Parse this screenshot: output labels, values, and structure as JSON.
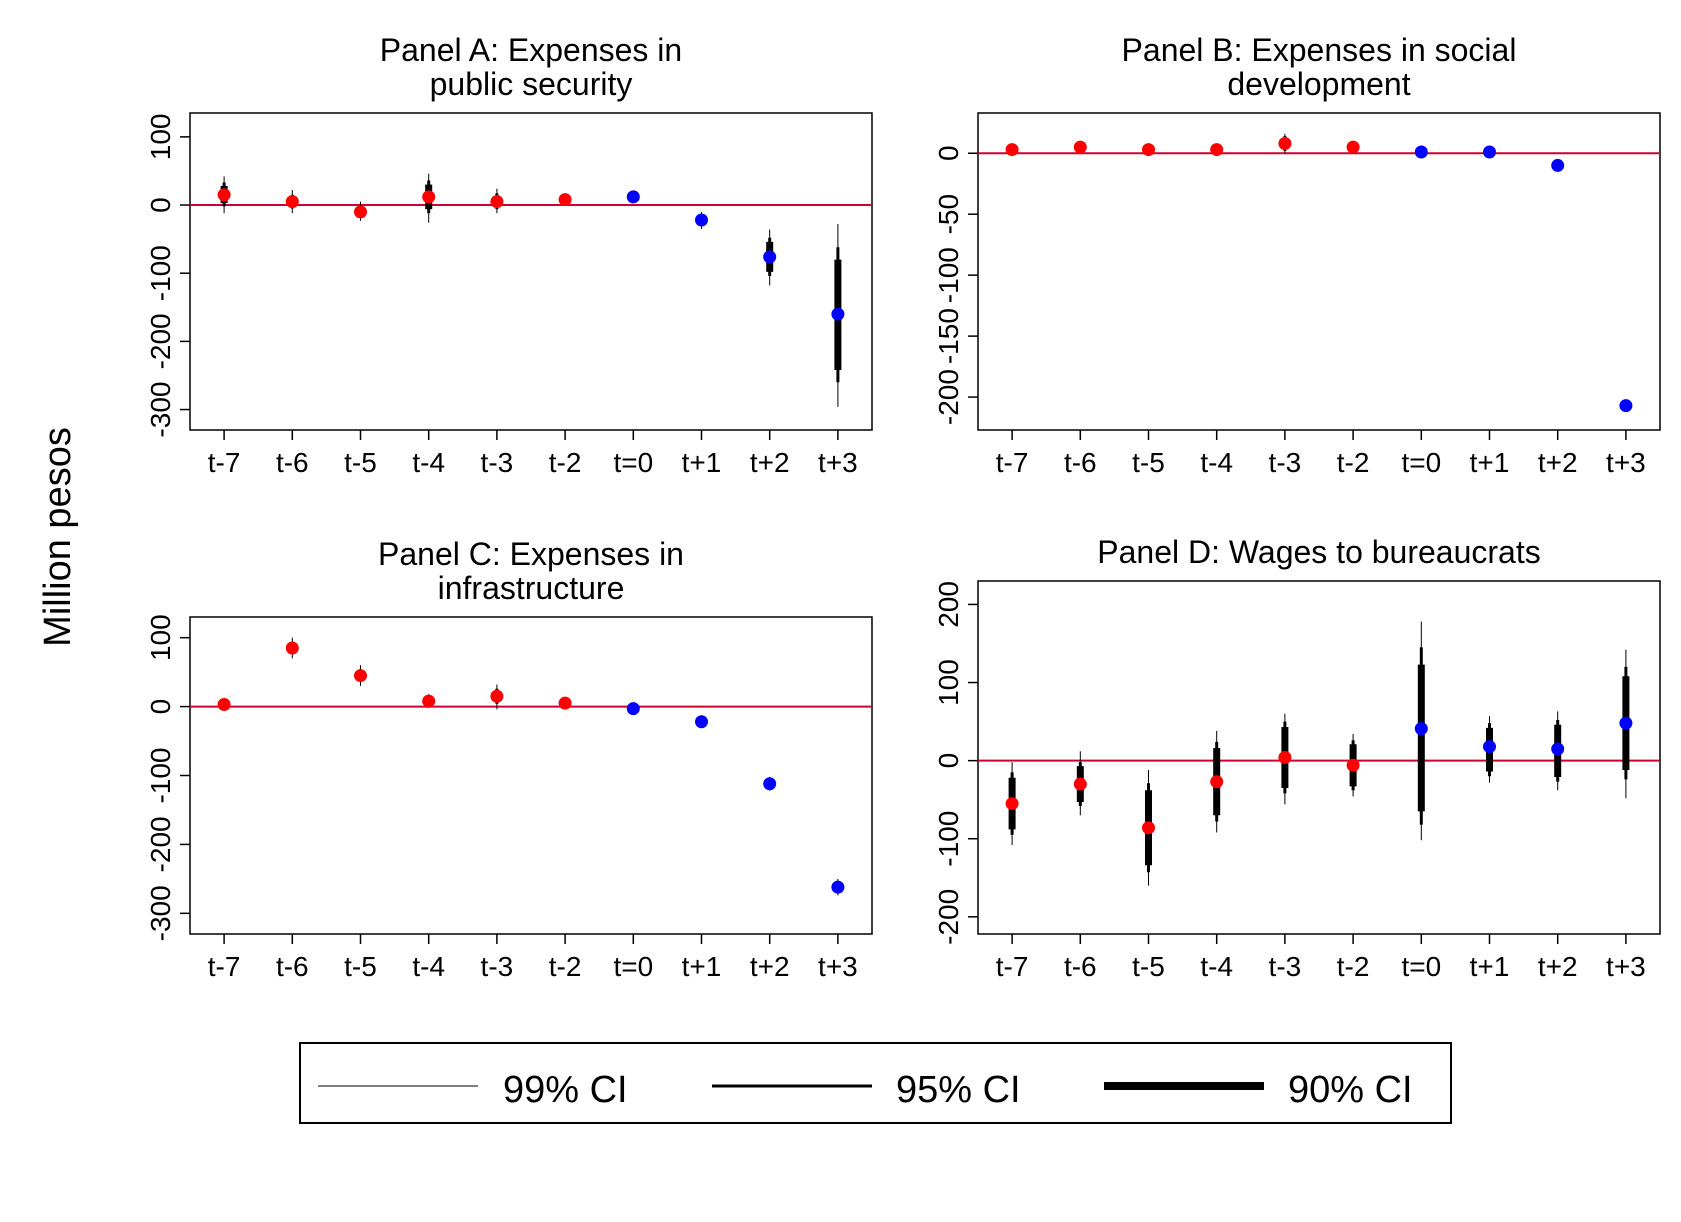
{
  "ylabel": "Million pesos",
  "colors": {
    "pre": "#ff0000",
    "post": "#0000ff",
    "zero_line": "#cc0033",
    "ci": "#000000"
  },
  "legend": {
    "ci99": "99% CI",
    "ci95": "95% CI",
    "ci90": "90% CI"
  },
  "chart_data": [
    {
      "type": "scatter",
      "title_lines": [
        "Panel A: Expenses in",
        "public security"
      ],
      "categories": [
        "t-7",
        "t-6",
        "t-5",
        "t-4",
        "t-3",
        "t-2",
        "t=0",
        "t+1",
        "t+2",
        "t+3"
      ],
      "ylim": [
        -330,
        135
      ],
      "yticks": [
        100,
        0,
        -100,
        -200,
        -300
      ],
      "ytick_labels": [
        "100",
        "0",
        "-100",
        "-200",
        "-300"
      ],
      "zero_line": 0,
      "points": [
        {
          "x": "t-7",
          "y": 15,
          "group": "pre",
          "ci90": [
            3,
            28
          ],
          "ci95": [
            -2,
            33
          ],
          "ci99": [
            -12,
            42
          ]
        },
        {
          "x": "t-6",
          "y": 5,
          "group": "pre",
          "ci90": [
            -2,
            12
          ],
          "ci95": [
            -5,
            15
          ],
          "ci99": [
            -12,
            22
          ]
        },
        {
          "x": "t-5",
          "y": -10,
          "group": "pre",
          "ci90": [
            -16,
            -4
          ],
          "ci95": [
            -18,
            -1
          ],
          "ci99": [
            -23,
            5
          ]
        },
        {
          "x": "t-4",
          "y": 12,
          "group": "pre",
          "ci90": [
            -6,
            30
          ],
          "ci95": [
            -12,
            36
          ],
          "ci99": [
            -26,
            46
          ]
        },
        {
          "x": "t-3",
          "y": 5,
          "group": "pre",
          "ci90": [
            -3,
            13
          ],
          "ci95": [
            -6,
            17
          ],
          "ci99": [
            -12,
            24
          ]
        },
        {
          "x": "t-2",
          "y": 8,
          "group": "pre",
          "ci90": [
            5,
            12
          ],
          "ci95": [
            4,
            13
          ],
          "ci99": [
            2,
            15
          ]
        },
        {
          "x": "t=0",
          "y": 12,
          "group": "post",
          "ci90": [
            10,
            14
          ],
          "ci95": [
            9,
            15
          ],
          "ci99": [
            8,
            16
          ]
        },
        {
          "x": "t+1",
          "y": -22,
          "group": "post",
          "ci90": [
            -28,
            -16
          ],
          "ci95": [
            -30,
            -14
          ],
          "ci99": [
            -35,
            -10
          ]
        },
        {
          "x": "t+2",
          "y": -76,
          "group": "post",
          "ci90": [
            -98,
            -54
          ],
          "ci95": [
            -104,
            -48
          ],
          "ci99": [
            -118,
            -36
          ]
        },
        {
          "x": "t+3",
          "y": -160,
          "group": "post",
          "ci90": [
            -242,
            -80
          ],
          "ci95": [
            -260,
            -62
          ],
          "ci99": [
            -296,
            -28
          ]
        }
      ]
    },
    {
      "type": "scatter",
      "title_lines": [
        "Panel B: Expenses in social",
        "development"
      ],
      "categories": [
        "t-7",
        "t-6",
        "t-5",
        "t-4",
        "t-3",
        "t-2",
        "t=0",
        "t+1",
        "t+2",
        "t+3"
      ],
      "ylim": [
        -227,
        33
      ],
      "yticks": [
        0,
        -50,
        -100,
        -150,
        -200
      ],
      "ytick_labels": [
        "0",
        "-50",
        "-100",
        "-150",
        "-200"
      ],
      "zero_line": 0,
      "points": [
        {
          "x": "t-7",
          "y": 3,
          "group": "pre",
          "ci90": [
            1,
            5
          ],
          "ci95": [
            0,
            6
          ],
          "ci99": [
            -1,
            7
          ]
        },
        {
          "x": "t-6",
          "y": 5,
          "group": "pre",
          "ci90": [
            3,
            7
          ],
          "ci95": [
            2,
            8
          ],
          "ci99": [
            1,
            9
          ]
        },
        {
          "x": "t-5",
          "y": 3,
          "group": "pre",
          "ci90": [
            1,
            5
          ],
          "ci95": [
            0,
            6
          ],
          "ci99": [
            -1,
            7
          ]
        },
        {
          "x": "t-4",
          "y": 3,
          "group": "pre",
          "ci90": [
            1,
            5
          ],
          "ci95": [
            0,
            6
          ],
          "ci99": [
            -1,
            7
          ]
        },
        {
          "x": "t-3",
          "y": 8,
          "group": "pre",
          "ci90": [
            4,
            12
          ],
          "ci95": [
            2,
            14
          ],
          "ci99": [
            0,
            16
          ]
        },
        {
          "x": "t-2",
          "y": 5,
          "group": "pre",
          "ci90": [
            3,
            7
          ],
          "ci95": [
            2,
            8
          ],
          "ci99": [
            1,
            9
          ]
        },
        {
          "x": "t=0",
          "y": 1,
          "group": "post",
          "ci90": [
            0,
            2
          ],
          "ci95": [
            -0.5,
            2.5
          ],
          "ci99": [
            -1,
            3
          ]
        },
        {
          "x": "t+1",
          "y": 1,
          "group": "post",
          "ci90": [
            0,
            2
          ],
          "ci95": [
            -0.5,
            2.5
          ],
          "ci99": [
            -1,
            3
          ]
        },
        {
          "x": "t+2",
          "y": -10,
          "group": "post",
          "ci90": [
            -12,
            -8
          ],
          "ci95": [
            -13,
            -7
          ],
          "ci99": [
            -14,
            -6
          ]
        },
        {
          "x": "t+3",
          "y": -207,
          "group": "post",
          "ci90": [
            -209,
            -205
          ],
          "ci95": [
            -210,
            -204
          ],
          "ci99": [
            -211,
            -203
          ]
        }
      ]
    },
    {
      "type": "scatter",
      "title_lines": [
        "Panel C: Expenses in",
        "infrastructure"
      ],
      "categories": [
        "t-7",
        "t-6",
        "t-5",
        "t-4",
        "t-3",
        "t-2",
        "t=0",
        "t+1",
        "t+2",
        "t+3"
      ],
      "ylim": [
        -330,
        130
      ],
      "yticks": [
        100,
        0,
        -100,
        -200,
        -300
      ],
      "ytick_labels": [
        "100",
        "0",
        "-100",
        "-200",
        "-300"
      ],
      "zero_line": 0,
      "points": [
        {
          "x": "t-7",
          "y": 3,
          "group": "pre",
          "ci90": [
            1,
            5
          ],
          "ci95": [
            0,
            6
          ],
          "ci99": [
            -1,
            7
          ]
        },
        {
          "x": "t-6",
          "y": 85,
          "group": "pre",
          "ci90": [
            79,
            91
          ],
          "ci95": [
            76,
            94
          ],
          "ci99": [
            70,
            100
          ]
        },
        {
          "x": "t-5",
          "y": 45,
          "group": "pre",
          "ci90": [
            39,
            51
          ],
          "ci95": [
            36,
            54
          ],
          "ci99": [
            30,
            60
          ]
        },
        {
          "x": "t-4",
          "y": 8,
          "group": "pre",
          "ci90": [
            4,
            12
          ],
          "ci95": [
            2,
            14
          ],
          "ci99": [
            -2,
            18
          ]
        },
        {
          "x": "t-3",
          "y": 15,
          "group": "pre",
          "ci90": [
            7,
            23
          ],
          "ci95": [
            4,
            26
          ],
          "ci99": [
            -4,
            32
          ]
        },
        {
          "x": "t-2",
          "y": 5,
          "group": "pre",
          "ci90": [
            3,
            7
          ],
          "ci95": [
            2,
            8
          ],
          "ci99": [
            1,
            9
          ]
        },
        {
          "x": "t=0",
          "y": -3,
          "group": "post",
          "ci90": [
            -4,
            -2
          ],
          "ci95": [
            -5,
            -1
          ],
          "ci99": [
            -6,
            0
          ]
        },
        {
          "x": "t+1",
          "y": -22,
          "group": "post",
          "ci90": [
            -24,
            -20
          ],
          "ci95": [
            -25,
            -19
          ],
          "ci99": [
            -27,
            -17
          ]
        },
        {
          "x": "t+2",
          "y": -112,
          "group": "post",
          "ci90": [
            -117,
            -107
          ],
          "ci95": [
            -119,
            -105
          ],
          "ci99": [
            -122,
            -102
          ]
        },
        {
          "x": "t+3",
          "y": -262,
          "group": "post",
          "ci90": [
            -267,
            -257
          ],
          "ci95": [
            -270,
            -254
          ],
          "ci99": [
            -274,
            -250
          ]
        }
      ]
    },
    {
      "type": "scatter",
      "title_lines": [
        "Panel D: Wages to bureaucrats"
      ],
      "categories": [
        "t-7",
        "t-6",
        "t-5",
        "t-4",
        "t-3",
        "t-2",
        "t=0",
        "t+1",
        "t+2",
        "t+3"
      ],
      "ylim": [
        -222,
        230
      ],
      "yticks": [
        200,
        100,
        0,
        -100,
        -200
      ],
      "ytick_labels": [
        "200",
        "100",
        "0",
        "-100",
        "-200"
      ],
      "zero_line": 0,
      "points": [
        {
          "x": "t-7",
          "y": -55,
          "group": "pre",
          "ci90": [
            -88,
            -22
          ],
          "ci95": [
            -95,
            -15
          ],
          "ci99": [
            -108,
            -2
          ]
        },
        {
          "x": "t-6",
          "y": -30,
          "group": "pre",
          "ci90": [
            -53,
            -7
          ],
          "ci95": [
            -58,
            -2
          ],
          "ci99": [
            -70,
            12
          ]
        },
        {
          "x": "t-5",
          "y": -86,
          "group": "pre",
          "ci90": [
            -134,
            -38
          ],
          "ci95": [
            -143,
            -29
          ],
          "ci99": [
            -160,
            -12
          ]
        },
        {
          "x": "t-4",
          "y": -27,
          "group": "pre",
          "ci90": [
            -70,
            16
          ],
          "ci95": [
            -78,
            24
          ],
          "ci99": [
            -92,
            38
          ]
        },
        {
          "x": "t-3",
          "y": 4,
          "group": "pre",
          "ci90": [
            -35,
            43
          ],
          "ci95": [
            -42,
            50
          ],
          "ci99": [
            -56,
            60
          ]
        },
        {
          "x": "t-2",
          "y": -6,
          "group": "pre",
          "ci90": [
            -33,
            21
          ],
          "ci95": [
            -38,
            26
          ],
          "ci99": [
            -46,
            34
          ]
        },
        {
          "x": "t=0",
          "y": 41,
          "group": "post",
          "ci90": [
            -65,
            123
          ],
          "ci95": [
            -82,
            145
          ],
          "ci99": [
            -102,
            178
          ]
        },
        {
          "x": "t+1",
          "y": 18,
          "group": "post",
          "ci90": [
            -14,
            42
          ],
          "ci95": [
            -20,
            48
          ],
          "ci99": [
            -28,
            57
          ]
        },
        {
          "x": "t+2",
          "y": 15,
          "group": "post",
          "ci90": [
            -21,
            46
          ],
          "ci95": [
            -27,
            52
          ],
          "ci99": [
            -38,
            63
          ]
        },
        {
          "x": "t+3",
          "y": 48,
          "group": "post",
          "ci90": [
            -12,
            108
          ],
          "ci95": [
            -24,
            120
          ],
          "ci99": [
            -48,
            142
          ]
        }
      ]
    }
  ]
}
